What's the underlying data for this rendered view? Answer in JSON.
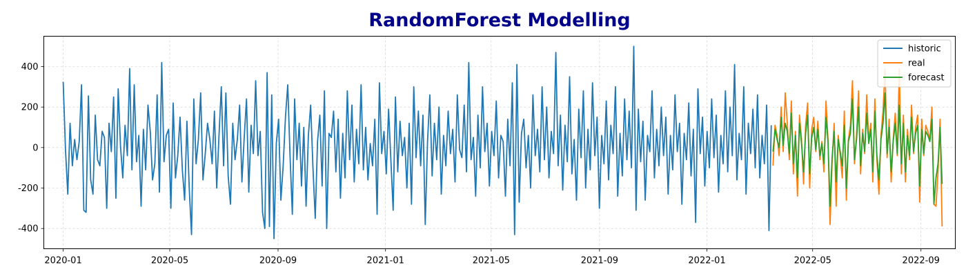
{
  "chart_data": {
    "type": "line",
    "title": "RandomForest Modelling",
    "xlabel": "",
    "ylabel": "",
    "x_axis": "date",
    "xlim": [
      "2019-12-10",
      "2022-10-10"
    ],
    "ylim": [
      -500,
      550
    ],
    "x_ticks": [
      "2020-01",
      "2020-05",
      "2020-09",
      "2021-01",
      "2021-05",
      "2021-09",
      "2022-01",
      "2022-05",
      "2022-09"
    ],
    "y_ticks": [
      -400,
      -200,
      0,
      200,
      400
    ],
    "grid": true,
    "legend_position": "top-right",
    "series": [
      {
        "name": "historic",
        "color": "#1f77b4",
        "start": "2020-01-01",
        "end": "2022-03-15",
        "step_days": 2,
        "values": [
          325,
          -10,
          -230,
          120,
          -90,
          40,
          -60,
          30,
          310,
          -310,
          -320,
          255,
          -160,
          -230,
          160,
          -60,
          -90,
          80,
          50,
          -300,
          120,
          -20,
          250,
          -250,
          290,
          10,
          -150,
          110,
          -40,
          390,
          -110,
          310,
          -70,
          60,
          -290,
          90,
          -110,
          210,
          80,
          -160,
          -80,
          260,
          -220,
          420,
          -70,
          60,
          90,
          -300,
          220,
          -150,
          -40,
          150,
          -110,
          -260,
          130,
          -200,
          -430,
          240,
          -80,
          40,
          270,
          -160,
          -30,
          120,
          40,
          -80,
          180,
          -200,
          60,
          300,
          -90,
          270,
          -140,
          -280,
          120,
          -60,
          40,
          210,
          -170,
          50,
          240,
          -220,
          110,
          -30,
          330,
          -40,
          80,
          -320,
          -400,
          370,
          -390,
          260,
          -450,
          20,
          140,
          -260,
          -90,
          150,
          310,
          -40,
          -330,
          240,
          -60,
          120,
          -190,
          100,
          -290,
          60,
          210,
          -100,
          -350,
          30,
          160,
          -190,
          280,
          -400,
          70,
          50,
          180,
          -120,
          140,
          -250,
          70,
          -150,
          280,
          -60,
          210,
          -170,
          90,
          -80,
          310,
          -110,
          100,
          -160,
          20,
          -90,
          140,
          -330,
          320,
          -30,
          80,
          -130,
          190,
          -60,
          -310,
          250,
          -120,
          130,
          -40,
          50,
          -200,
          120,
          -280,
          300,
          -50,
          180,
          -90,
          160,
          -380,
          30,
          260,
          -140,
          120,
          -60,
          200,
          -230,
          60,
          -90,
          180,
          -30,
          90,
          -170,
          260,
          -10,
          -50,
          210,
          -120,
          420,
          -60,
          50,
          -240,
          160,
          -100,
          300,
          -20,
          120,
          -190,
          80,
          -40,
          230,
          -150,
          60,
          30,
          -240,
          140,
          -90,
          320,
          -430,
          410,
          -270,
          70,
          140,
          -100,
          60,
          -200,
          260,
          -40,
          90,
          -120,
          300,
          -60,
          200,
          -150,
          80,
          -30,
          470,
          -90,
          160,
          -210,
          110,
          -70,
          350,
          -130,
          40,
          -260,
          190,
          -50,
          280,
          -200,
          90,
          -110,
          320,
          -40,
          150,
          -300,
          60,
          -80,
          230,
          -160,
          110,
          -30,
          300,
          -240,
          70,
          -140,
          240,
          -60,
          180,
          -100,
          500,
          -310,
          190,
          -70,
          130,
          -260,
          60,
          -20,
          280,
          -150,
          90,
          -90,
          200,
          -40,
          150,
          -230,
          60,
          -110,
          260,
          -20,
          120,
          -280,
          70,
          -60,
          220,
          -140,
          90,
          -370,
          290,
          -30,
          150,
          -190,
          80,
          -100,
          240,
          -50,
          160,
          -220,
          60,
          -80,
          280,
          -120,
          200,
          -40,
          410,
          -160,
          70,
          -60,
          300,
          -230,
          120,
          -30,
          190,
          -100,
          260,
          -150,
          60,
          -80,
          210,
          -410,
          110
        ]
      },
      {
        "name": "real",
        "color": "#ff7f0e",
        "start": "2022-03-17",
        "end": "2022-09-25",
        "step_days": 2,
        "values": [
          -90,
          110,
          60,
          -40,
          200,
          -20,
          270,
          120,
          -60,
          230,
          -130,
          80,
          -240,
          160,
          40,
          -180,
          110,
          220,
          -200,
          90,
          150,
          -20,
          130,
          -60,
          30,
          -120,
          230,
          40,
          -380,
          -80,
          120,
          -290,
          60,
          -40,
          -150,
          180,
          -260,
          40,
          110,
          330,
          -80,
          60,
          280,
          -130,
          90,
          -30,
          260,
          30,
          120,
          -170,
          240,
          -60,
          -230,
          60,
          180,
          390,
          -50,
          140,
          -170,
          40,
          170,
          -40,
          390,
          -130,
          160,
          -170,
          90,
          -60,
          210,
          -30,
          100,
          160,
          -270,
          140,
          -40,
          110,
          80,
          40,
          200,
          -280,
          -290,
          -120,
          140,
          -390
        ]
      },
      {
        "name": "forecast",
        "color": "#2ca02c",
        "start": "2022-03-17",
        "end": "2022-09-25",
        "step_days": 2,
        "values": [
          -20,
          90,
          40,
          0,
          150,
          10,
          120,
          80,
          -30,
          170,
          -80,
          60,
          -150,
          120,
          20,
          -120,
          70,
          160,
          -130,
          50,
          100,
          -10,
          90,
          -40,
          20,
          -80,
          150,
          30,
          -290,
          -50,
          80,
          -170,
          40,
          -20,
          -90,
          110,
          -200,
          30,
          70,
          240,
          -60,
          40,
          200,
          -90,
          70,
          -20,
          170,
          20,
          90,
          -120,
          180,
          -40,
          -160,
          40,
          120,
          270,
          -30,
          100,
          -120,
          30,
          120,
          -30,
          210,
          -80,
          120,
          -120,
          60,
          -40,
          150,
          -20,
          70,
          110,
          -190,
          90,
          -30,
          80,
          60,
          30,
          140,
          -280,
          -150,
          -80,
          100,
          -180
        ]
      }
    ]
  }
}
